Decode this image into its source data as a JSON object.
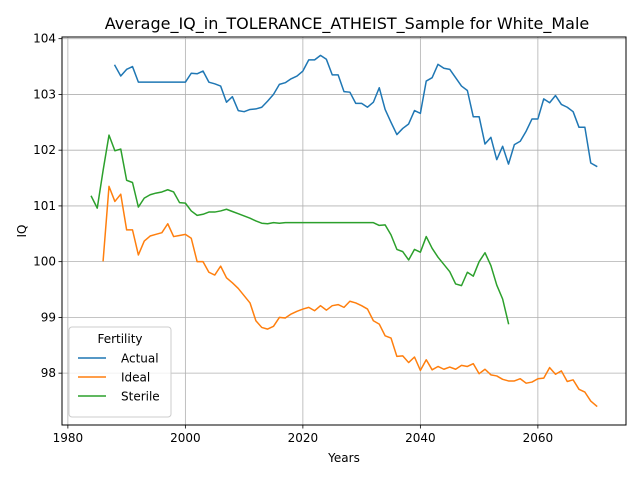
{
  "chart_data": {
    "type": "line",
    "title": "Average_IQ_in_TOLERANCE_ATHEIST_Sample for White_Male",
    "xlabel": "Years",
    "ylabel": "IQ",
    "xlim": [
      1979,
      2075
    ],
    "ylim": [
      97.07,
      104.03
    ],
    "x_ticks": [
      1980,
      2000,
      2020,
      2040,
      2060
    ],
    "y_ticks": [
      98,
      99,
      100,
      101,
      102,
      103,
      104
    ],
    "grid": true,
    "legend": {
      "title": "Fertility",
      "placement": "lower-left"
    },
    "series": [
      {
        "name": "Actual",
        "color": "#1f77b4",
        "points": [
          [
            1988,
            103.52
          ],
          [
            1989,
            103.33
          ],
          [
            1990,
            103.45
          ],
          [
            1991,
            103.5
          ],
          [
            1992,
            103.22
          ],
          [
            1993,
            103.22
          ],
          [
            1994,
            103.22
          ],
          [
            1995,
            103.22
          ],
          [
            1996,
            103.22
          ],
          [
            1997,
            103.22
          ],
          [
            1998,
            103.22
          ],
          [
            1999,
            103.22
          ],
          [
            2000,
            103.22
          ],
          [
            2001,
            103.38
          ],
          [
            2002,
            103.37
          ],
          [
            2003,
            103.42
          ],
          [
            2004,
            103.22
          ],
          [
            2005,
            103.19
          ],
          [
            2006,
            103.15
          ],
          [
            2007,
            102.86
          ],
          [
            2008,
            102.96
          ],
          [
            2009,
            102.71
          ],
          [
            2010,
            102.69
          ],
          [
            2011,
            102.73
          ],
          [
            2012,
            102.74
          ],
          [
            2013,
            102.77
          ],
          [
            2014,
            102.88
          ],
          [
            2015,
            103.0
          ],
          [
            2016,
            103.18
          ],
          [
            2017,
            103.21
          ],
          [
            2018,
            103.28
          ],
          [
            2019,
            103.33
          ],
          [
            2020,
            103.42
          ],
          [
            2021,
            103.62
          ],
          [
            2022,
            103.62
          ],
          [
            2023,
            103.7
          ],
          [
            2024,
            103.63
          ],
          [
            2025,
            103.35
          ],
          [
            2026,
            103.35
          ],
          [
            2027,
            103.05
          ],
          [
            2028,
            103.04
          ],
          [
            2029,
            102.84
          ],
          [
            2030,
            102.84
          ],
          [
            2031,
            102.77
          ],
          [
            2032,
            102.86
          ],
          [
            2033,
            103.12
          ],
          [
            2034,
            102.73
          ],
          [
            2035,
            102.5
          ],
          [
            2036,
            102.28
          ],
          [
            2037,
            102.39
          ],
          [
            2038,
            102.47
          ],
          [
            2039,
            102.71
          ],
          [
            2040,
            102.66
          ],
          [
            2041,
            103.24
          ],
          [
            2042,
            103.3
          ],
          [
            2043,
            103.54
          ],
          [
            2044,
            103.47
          ],
          [
            2045,
            103.45
          ],
          [
            2046,
            103.3
          ],
          [
            2047,
            103.15
          ],
          [
            2048,
            103.07
          ],
          [
            2049,
            102.6
          ],
          [
            2050,
            102.6
          ],
          [
            2051,
            102.11
          ],
          [
            2052,
            102.23
          ],
          [
            2053,
            101.83
          ],
          [
            2054,
            102.07
          ],
          [
            2055,
            101.75
          ],
          [
            2056,
            102.1
          ],
          [
            2057,
            102.16
          ],
          [
            2058,
            102.34
          ],
          [
            2059,
            102.56
          ],
          [
            2060,
            102.56
          ],
          [
            2061,
            102.92
          ],
          [
            2062,
            102.85
          ],
          [
            2063,
            102.98
          ],
          [
            2064,
            102.82
          ],
          [
            2065,
            102.77
          ],
          [
            2066,
            102.69
          ],
          [
            2067,
            102.41
          ],
          [
            2068,
            102.41
          ],
          [
            2069,
            101.77
          ],
          [
            2070,
            101.71
          ]
        ]
      },
      {
        "name": "Ideal",
        "color": "#ff7f0e",
        "points": [
          [
            1986,
            100.02
          ],
          [
            1987,
            101.35
          ],
          [
            1988,
            101.08
          ],
          [
            1989,
            101.21
          ],
          [
            1990,
            100.57
          ],
          [
            1991,
            100.57
          ],
          [
            1992,
            100.12
          ],
          [
            1993,
            100.37
          ],
          [
            1994,
            100.46
          ],
          [
            1995,
            100.49
          ],
          [
            1996,
            100.52
          ],
          [
            1997,
            100.68
          ],
          [
            1998,
            100.45
          ],
          [
            1999,
            100.47
          ],
          [
            2000,
            100.49
          ],
          [
            2001,
            100.42
          ],
          [
            2002,
            100.0
          ],
          [
            2003,
            100.0
          ],
          [
            2004,
            99.81
          ],
          [
            2005,
            99.76
          ],
          [
            2006,
            99.92
          ],
          [
            2007,
            99.71
          ],
          [
            2008,
            99.62
          ],
          [
            2009,
            99.52
          ],
          [
            2010,
            99.39
          ],
          [
            2011,
            99.26
          ],
          [
            2012,
            98.94
          ],
          [
            2013,
            98.82
          ],
          [
            2014,
            98.79
          ],
          [
            2015,
            98.84
          ],
          [
            2016,
            99.0
          ],
          [
            2017,
            98.99
          ],
          [
            2018,
            99.06
          ],
          [
            2019,
            99.11
          ],
          [
            2020,
            99.15
          ],
          [
            2021,
            99.18
          ],
          [
            2022,
            99.12
          ],
          [
            2023,
            99.21
          ],
          [
            2024,
            99.13
          ],
          [
            2025,
            99.21
          ],
          [
            2026,
            99.23
          ],
          [
            2027,
            99.18
          ],
          [
            2028,
            99.29
          ],
          [
            2029,
            99.26
          ],
          [
            2030,
            99.21
          ],
          [
            2031,
            99.15
          ],
          [
            2032,
            98.94
          ],
          [
            2033,
            98.88
          ],
          [
            2034,
            98.67
          ],
          [
            2035,
            98.63
          ],
          [
            2036,
            98.3
          ],
          [
            2037,
            98.31
          ],
          [
            2038,
            98.19
          ],
          [
            2039,
            98.29
          ],
          [
            2040,
            98.05
          ],
          [
            2041,
            98.24
          ],
          [
            2042,
            98.06
          ],
          [
            2043,
            98.12
          ],
          [
            2044,
            98.07
          ],
          [
            2045,
            98.11
          ],
          [
            2046,
            98.07
          ],
          [
            2047,
            98.14
          ],
          [
            2048,
            98.12
          ],
          [
            2049,
            98.17
          ],
          [
            2050,
            97.99
          ],
          [
            2051,
            98.07
          ],
          [
            2052,
            97.97
          ],
          [
            2053,
            97.95
          ],
          [
            2054,
            97.89
          ],
          [
            2055,
            97.86
          ],
          [
            2056,
            97.86
          ],
          [
            2057,
            97.9
          ],
          [
            2058,
            97.82
          ],
          [
            2059,
            97.84
          ],
          [
            2060,
            97.9
          ],
          [
            2061,
            97.91
          ],
          [
            2062,
            98.1
          ],
          [
            2063,
            97.98
          ],
          [
            2064,
            98.04
          ],
          [
            2065,
            97.85
          ],
          [
            2066,
            97.88
          ],
          [
            2067,
            97.71
          ],
          [
            2068,
            97.66
          ],
          [
            2069,
            97.5
          ],
          [
            2070,
            97.41
          ]
        ]
      },
      {
        "name": "Sterile",
        "color": "#2ca02c",
        "points": [
          [
            1984,
            101.17
          ],
          [
            1985,
            100.96
          ],
          [
            1986,
            101.64
          ],
          [
            1987,
            102.27
          ],
          [
            1988,
            101.99
          ],
          [
            1989,
            102.02
          ],
          [
            1990,
            101.46
          ],
          [
            1991,
            101.42
          ],
          [
            1992,
            100.98
          ],
          [
            1993,
            101.14
          ],
          [
            1994,
            101.2
          ],
          [
            1995,
            101.23
          ],
          [
            1996,
            101.25
          ],
          [
            1997,
            101.29
          ],
          [
            1998,
            101.25
          ],
          [
            1999,
            101.06
          ],
          [
            2000,
            101.05
          ],
          [
            2001,
            100.91
          ],
          [
            2002,
            100.83
          ],
          [
            2003,
            100.85
          ],
          [
            2004,
            100.89
          ],
          [
            2005,
            100.89
          ],
          [
            2006,
            100.91
          ],
          [
            2007,
            100.94
          ],
          [
            2008,
            100.9
          ],
          [
            2009,
            100.86
          ],
          [
            2010,
            100.82
          ],
          [
            2011,
            100.78
          ],
          [
            2012,
            100.73
          ],
          [
            2013,
            100.69
          ],
          [
            2014,
            100.68
          ],
          [
            2015,
            100.7
          ],
          [
            2016,
            100.69
          ],
          [
            2017,
            100.7
          ],
          [
            2018,
            100.7
          ],
          [
            2019,
            100.7
          ],
          [
            2020,
            100.7
          ],
          [
            2021,
            100.7
          ],
          [
            2022,
            100.7
          ],
          [
            2023,
            100.7
          ],
          [
            2024,
            100.7
          ],
          [
            2025,
            100.7
          ],
          [
            2026,
            100.7
          ],
          [
            2027,
            100.7
          ],
          [
            2028,
            100.7
          ],
          [
            2029,
            100.7
          ],
          [
            2030,
            100.7
          ],
          [
            2031,
            100.7
          ],
          [
            2032,
            100.7
          ],
          [
            2033,
            100.65
          ],
          [
            2034,
            100.66
          ],
          [
            2035,
            100.48
          ],
          [
            2036,
            100.22
          ],
          [
            2037,
            100.18
          ],
          [
            2038,
            100.03
          ],
          [
            2039,
            100.22
          ],
          [
            2040,
            100.17
          ],
          [
            2041,
            100.45
          ],
          [
            2042,
            100.24
          ],
          [
            2043,
            100.08
          ],
          [
            2044,
            99.95
          ],
          [
            2045,
            99.82
          ],
          [
            2046,
            99.6
          ],
          [
            2047,
            99.57
          ],
          [
            2048,
            99.81
          ],
          [
            2049,
            99.74
          ],
          [
            2050,
            100.0
          ],
          [
            2051,
            100.16
          ],
          [
            2052,
            99.93
          ],
          [
            2053,
            99.58
          ],
          [
            2054,
            99.33
          ],
          [
            2055,
            98.89
          ]
        ]
      }
    ]
  }
}
